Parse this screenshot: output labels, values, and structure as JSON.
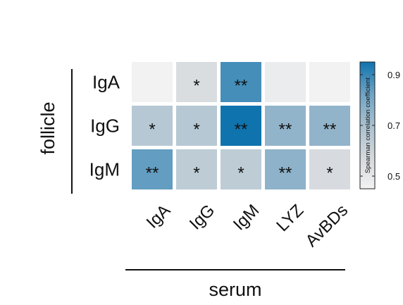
{
  "chart_data": {
    "type": "heatmap",
    "title": "",
    "xlabel": "serum",
    "ylabel": "follicle",
    "x_categories": [
      "IgA",
      "IgG",
      "IgM",
      "LYZ",
      "AvBDs"
    ],
    "y_categories": [
      "IgA",
      "IgG",
      "IgM"
    ],
    "values": [
      [
        0.42,
        0.55,
        0.88,
        0.48,
        0.35
      ],
      [
        0.66,
        0.66,
        0.95,
        0.75,
        0.75
      ],
      [
        0.84,
        0.64,
        0.64,
        0.76,
        0.56
      ]
    ],
    "significance": [
      [
        "",
        "*",
        "**",
        "",
        ""
      ],
      [
        "*",
        "*",
        "**",
        "**",
        "**"
      ],
      [
        "**",
        "*",
        "*",
        "**",
        "*"
      ]
    ],
    "colorbar": {
      "label": "Spearman correlation coefficient",
      "min": 0.45,
      "max": 0.95,
      "ticks": [
        0.9,
        0.7,
        0.5
      ],
      "tick_labels": [
        "0.9",
        "0.7",
        "0.5"
      ],
      "colors": [
        "#f2f2f2",
        "#d3d8dc",
        "#a9c0cf",
        "#6fa3c4",
        "#0f73ae"
      ]
    }
  }
}
